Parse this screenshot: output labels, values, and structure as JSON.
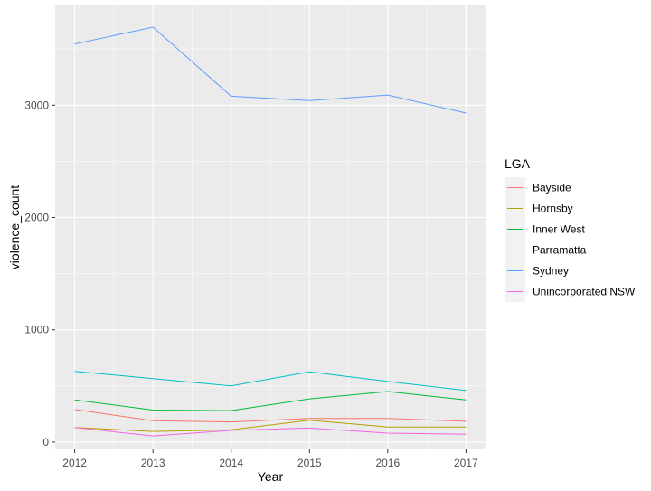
{
  "chart_data": {
    "type": "line",
    "title": "",
    "xlabel": "Year",
    "ylabel": "violence_count",
    "x": [
      2012,
      2013,
      2014,
      2015,
      2016,
      2017
    ],
    "x_ticks": [
      "2012",
      "2013",
      "2014",
      "2015",
      "2016",
      "2017"
    ],
    "xlim": [
      2011.75,
      2017.25
    ],
    "ylim": [
      -65,
      3888
    ],
    "y_ticks": [
      0,
      1000,
      2000,
      3000
    ],
    "y_tick_labels": [
      "0",
      "1000",
      "2000",
      "3000"
    ],
    "grid": true,
    "legend": {
      "title": "LGA",
      "position": "right"
    },
    "series": [
      {
        "name": "Bayside",
        "color": "#F8766D",
        "values": [
          290,
          190,
          180,
          210,
          210,
          185
        ]
      },
      {
        "name": "Hornsby",
        "color": "#B79F00",
        "values": [
          130,
          95,
          110,
          195,
          135,
          135
        ]
      },
      {
        "name": "Inner West",
        "color": "#00BA38",
        "values": [
          375,
          285,
          280,
          385,
          450,
          375
        ]
      },
      {
        "name": "Parramatta",
        "color": "#00BFC4",
        "values": [
          630,
          565,
          500,
          625,
          540,
          460
        ]
      },
      {
        "name": "Sydney",
        "color": "#619CFF",
        "values": [
          3545,
          3695,
          3080,
          3040,
          3090,
          2930
        ]
      },
      {
        "name": "Unincorporated NSW",
        "color": "#F564E3",
        "values": [
          130,
          55,
          105,
          125,
          80,
          70
        ]
      }
    ]
  }
}
